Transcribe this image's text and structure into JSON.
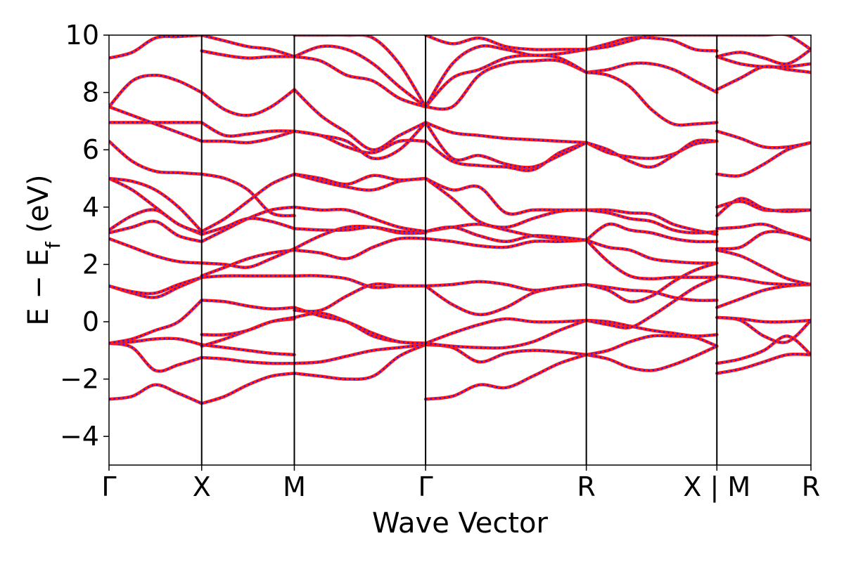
{
  "chart_data": {
    "type": "line",
    "title": "",
    "xlabel": "Wave Vector",
    "ylabel_main": "E − E",
    "ylabel_sub": "f",
    "ylabel_unit": " (eV)",
    "ylim": [
      -5,
      10
    ],
    "yticks": [
      -4,
      -2,
      0,
      2,
      4,
      6,
      8,
      10
    ],
    "ytick_labels": [
      "−4",
      "−2",
      "0",
      "2",
      "4",
      "6",
      "8",
      "10"
    ],
    "grid": false,
    "legend": "none",
    "x_range": [
      0,
      1
    ],
    "high_symmetry_points": [
      {
        "label": "Γ",
        "x": 0.0
      },
      {
        "label": "X",
        "x": 0.132
      },
      {
        "label": "M",
        "x": 0.264
      },
      {
        "label": "Γ",
        "x": 0.451
      },
      {
        "label": "R",
        "x": 0.68
      },
      {
        "label": "X | M",
        "x": 0.866
      },
      {
        "label": "R",
        "x": 1.0
      }
    ],
    "colors": {
      "band_solid": "#ff1a1a",
      "band_dashed": "#1a1aff",
      "frame": "#000000"
    },
    "segments": [
      {
        "name": "Γ-X",
        "x": [
          0.0,
          0.132
        ],
        "bands": [
          [
            -2.7,
            -2.6,
            -2.2,
            -2.5,
            -2.85
          ],
          [
            -0.75,
            -0.9,
            -1.7,
            -1.5,
            -1.25
          ],
          [
            -0.75,
            -0.7,
            -0.6,
            -0.6,
            -0.8
          ],
          [
            -0.75,
            -0.6,
            -0.3,
            0.0,
            0.75
          ],
          [
            1.25,
            1.0,
            0.85,
            1.2,
            1.55
          ],
          [
            1.25,
            1.05,
            1.0,
            1.3,
            1.55
          ],
          [
            2.9,
            2.6,
            2.3,
            2.1,
            2.05
          ],
          [
            3.1,
            3.3,
            3.5,
            3.0,
            2.8
          ],
          [
            3.2,
            3.7,
            3.9,
            3.4,
            3.05
          ],
          [
            5.0,
            4.6,
            4.0,
            3.4,
            3.1
          ],
          [
            5.0,
            4.9,
            4.6,
            4.0,
            3.15
          ],
          [
            6.3,
            5.6,
            5.25,
            5.2,
            5.15
          ],
          [
            6.95,
            6.95,
            6.95,
            6.95,
            6.95
          ],
          [
            7.5,
            7.2,
            6.9,
            6.6,
            6.3
          ],
          [
            7.5,
            8.4,
            8.6,
            8.4,
            8.0
          ],
          [
            9.2,
            9.4,
            9.9,
            9.95,
            10.0
          ]
        ]
      },
      {
        "name": "X-M",
        "x": [
          0.132,
          0.264
        ],
        "bands": [
          [
            -2.85,
            -2.6,
            -2.2,
            -1.9,
            -1.8
          ],
          [
            -1.25,
            -1.3,
            -1.4,
            -1.45,
            -1.45
          ],
          [
            -0.8,
            -0.9,
            -1.0,
            -1.1,
            -1.15
          ],
          [
            -0.85,
            -0.6,
            -0.3,
            0.0,
            0.1
          ],
          [
            -0.45,
            -0.45,
            -0.3,
            0.0,
            0.15
          ],
          [
            0.75,
            0.7,
            0.55,
            0.45,
            0.5
          ],
          [
            1.55,
            1.6,
            1.6,
            1.6,
            1.6
          ],
          [
            1.6,
            1.9,
            2.2,
            2.4,
            2.5
          ],
          [
            2.05,
            2.0,
            1.9,
            2.2,
            2.55
          ],
          [
            2.8,
            3.2,
            3.6,
            3.9,
            4.0
          ],
          [
            3.05,
            3.3,
            3.6,
            3.5,
            3.25
          ],
          [
            3.15,
            3.6,
            4.2,
            4.8,
            5.15
          ],
          [
            5.15,
            5.0,
            4.6,
            3.8,
            3.7
          ],
          [
            6.3,
            6.3,
            6.25,
            6.4,
            6.65
          ],
          [
            6.95,
            6.5,
            6.55,
            6.65,
            6.65
          ],
          [
            8.0,
            7.4,
            7.2,
            7.5,
            8.1
          ],
          [
            9.45,
            9.3,
            9.2,
            9.25,
            9.25
          ],
          [
            10.0,
            9.8,
            9.6,
            9.5,
            9.25
          ]
        ]
      },
      {
        "name": "M-Γ",
        "x": [
          0.264,
          0.451
        ],
        "bands": [
          [
            -1.8,
            -1.9,
            -2.0,
            -1.9,
            -1.2,
            -0.8
          ],
          [
            -1.45,
            -1.4,
            -1.2,
            -1.0,
            -0.9,
            -0.8
          ],
          [
            0.15,
            0.3,
            0.0,
            -0.5,
            -0.7,
            -0.75
          ],
          [
            0.5,
            0.2,
            0.0,
            -0.4,
            -0.7,
            -0.75
          ],
          [
            0.4,
            0.4,
            0.9,
            1.3,
            1.25,
            1.25
          ],
          [
            1.6,
            1.6,
            1.5,
            1.2,
            1.25,
            1.25
          ],
          [
            2.5,
            2.4,
            2.2,
            2.6,
            2.9,
            2.9
          ],
          [
            2.55,
            3.0,
            3.3,
            3.3,
            3.1,
            3.1
          ],
          [
            3.25,
            3.2,
            3.2,
            3.3,
            3.15,
            3.15
          ],
          [
            4.0,
            3.9,
            3.9,
            3.6,
            3.3,
            3.15
          ],
          [
            5.15,
            4.9,
            4.7,
            4.6,
            4.9,
            5.0
          ],
          [
            5.15,
            5.0,
            4.8,
            5.1,
            4.95,
            5.0
          ],
          [
            6.65,
            6.5,
            6.1,
            5.9,
            6.3,
            6.3
          ],
          [
            6.65,
            6.5,
            6.3,
            5.7,
            6.0,
            6.95
          ],
          [
            8.1,
            7.2,
            6.6,
            6.0,
            6.5,
            6.95
          ],
          [
            9.25,
            9.1,
            8.6,
            8.4,
            7.8,
            7.5
          ],
          [
            9.25,
            9.6,
            9.5,
            9.0,
            8.2,
            7.5
          ],
          [
            10.0,
            10.0,
            10.0,
            9.9,
            9.0,
            7.5
          ]
        ]
      },
      {
        "name": "Γ-R",
        "x": [
          0.451,
          0.68
        ],
        "bands": [
          [
            -2.7,
            -2.6,
            -2.2,
            -2.3,
            -1.9,
            -1.45,
            -1.15
          ],
          [
            -0.8,
            -0.9,
            -1.4,
            -1.1,
            -1.0,
            -1.05,
            -1.15
          ],
          [
            -0.75,
            -0.85,
            -0.9,
            -0.9,
            -0.7,
            -0.3,
            0.05
          ],
          [
            -0.75,
            -0.4,
            -0.1,
            0.1,
            0.0,
            0.0,
            0.05
          ],
          [
            1.25,
            0.6,
            0.25,
            0.5,
            1.0,
            1.2,
            1.3
          ],
          [
            1.25,
            1.3,
            1.4,
            1.3,
            1.1,
            1.2,
            1.3
          ],
          [
            2.9,
            2.8,
            2.65,
            2.6,
            2.8,
            2.8,
            2.85
          ],
          [
            3.15,
            3.3,
            3.4,
            3.2,
            3.0,
            2.9,
            2.85
          ],
          [
            3.15,
            3.3,
            3.0,
            2.8,
            3.0,
            2.95,
            2.85
          ],
          [
            5.0,
            4.3,
            3.5,
            3.3,
            3.6,
            3.85,
            3.9
          ],
          [
            5.0,
            4.6,
            4.7,
            3.8,
            3.9,
            3.9,
            3.9
          ],
          [
            6.3,
            5.6,
            5.45,
            5.4,
            5.3,
            5.9,
            6.25
          ],
          [
            6.95,
            6.6,
            6.5,
            6.4,
            6.35,
            6.3,
            6.25
          ],
          [
            6.95,
            5.7,
            5.8,
            5.5,
            5.4,
            5.8,
            6.25
          ],
          [
            7.5,
            7.5,
            8.6,
            9.0,
            9.1,
            9.1,
            8.7
          ],
          [
            7.5,
            8.5,
            8.8,
            9.2,
            9.3,
            9.2,
            8.7
          ],
          [
            7.5,
            9.0,
            9.6,
            9.5,
            9.3,
            9.35,
            9.5
          ],
          [
            10.0,
            9.7,
            9.9,
            9.6,
            9.5,
            9.5,
            9.5
          ]
        ]
      },
      {
        "name": "R-X",
        "x": [
          0.68,
          0.866
        ],
        "bands": [
          [
            -1.15,
            -1.3,
            -1.6,
            -1.7,
            -1.5,
            -1.2,
            -0.85
          ],
          [
            -1.15,
            -1.0,
            -0.7,
            -0.5,
            -0.5,
            -0.55,
            -0.85
          ],
          [
            0.05,
            0.0,
            -0.15,
            -0.3,
            -0.4,
            -0.5,
            -0.45
          ],
          [
            0.05,
            -0.1,
            -0.2,
            0.2,
            0.7,
            1.2,
            1.55
          ],
          [
            1.3,
            1.2,
            1.1,
            1.05,
            0.85,
            0.75,
            0.75
          ],
          [
            1.3,
            1.1,
            0.7,
            0.9,
            1.4,
            1.8,
            2.05
          ],
          [
            2.85,
            2.1,
            1.6,
            1.5,
            1.55,
            1.55,
            1.55
          ],
          [
            2.85,
            2.6,
            2.5,
            2.2,
            2.1,
            2.05,
            2.05
          ],
          [
            2.85,
            3.4,
            3.2,
            3.1,
            2.9,
            2.8,
            2.8
          ],
          [
            3.9,
            3.9,
            3.8,
            3.75,
            3.4,
            3.2,
            3.05
          ],
          [
            3.9,
            3.8,
            3.6,
            3.5,
            3.2,
            3.1,
            3.15
          ],
          [
            6.25,
            5.9,
            5.75,
            5.7,
            5.85,
            6.2,
            6.3
          ],
          [
            6.25,
            6.0,
            5.6,
            5.4,
            5.8,
            6.3,
            6.3
          ],
          [
            8.7,
            8.8,
            9.0,
            9.0,
            8.8,
            8.4,
            8.0
          ],
          [
            8.7,
            8.6,
            8.2,
            7.4,
            6.9,
            6.9,
            6.95
          ],
          [
            9.5,
            9.7,
            9.9,
            9.9,
            9.8,
            9.5,
            9.45
          ],
          [
            9.5,
            9.6,
            9.8,
            10.0,
            10.0,
            10.0,
            10.0
          ]
        ]
      },
      {
        "name": "M-R",
        "x": [
          0.866,
          1.0
        ],
        "bands": [
          [
            -1.8,
            -1.65,
            -1.4,
            -1.15,
            -1.15
          ],
          [
            -1.45,
            -1.3,
            -1.0,
            -0.5,
            -1.15
          ],
          [
            0.15,
            0.05,
            -0.5,
            -0.7,
            0.05
          ],
          [
            0.15,
            0.1,
            0.0,
            0.0,
            0.05
          ],
          [
            0.5,
            0.8,
            1.1,
            1.25,
            1.3
          ],
          [
            1.6,
            1.5,
            1.35,
            1.3,
            1.3
          ],
          [
            2.5,
            2.3,
            1.9,
            1.5,
            1.3
          ],
          [
            2.55,
            2.6,
            3.1,
            3.1,
            2.85
          ],
          [
            3.25,
            3.3,
            3.4,
            3.1,
            2.85
          ],
          [
            4.0,
            4.2,
            3.9,
            3.9,
            3.9
          ],
          [
            3.7,
            4.3,
            3.95,
            3.85,
            3.9
          ],
          [
            5.15,
            5.1,
            5.5,
            6.0,
            6.25
          ],
          [
            6.65,
            6.4,
            6.1,
            6.1,
            6.25
          ],
          [
            8.1,
            8.5,
            8.9,
            8.8,
            8.7
          ],
          [
            9.25,
            9.0,
            8.9,
            8.9,
            9.0
          ],
          [
            9.25,
            9.4,
            9.2,
            9.0,
            9.5
          ],
          [
            10.0,
            10.0,
            10.0,
            10.0,
            9.5
          ]
        ]
      }
    ]
  }
}
